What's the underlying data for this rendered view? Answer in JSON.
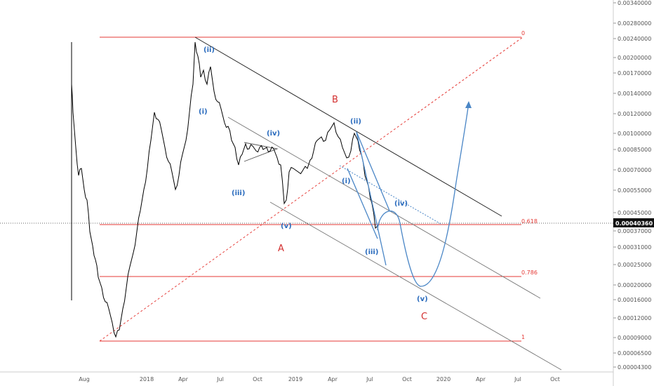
{
  "chart_data": {
    "type": "candlestick-line",
    "title": "",
    "xlabel": "",
    "ylabel": "",
    "x_ticks": [
      "Aug",
      "2018",
      "Apr",
      "Jul",
      "Oct",
      "2019",
      "Apr",
      "Jul",
      "Oct",
      "2020",
      "Apr",
      "Jul",
      "Oct"
    ],
    "y_ticks": [
      "0.00340000",
      "0.00280000",
      "0.00240000",
      "0.00200000",
      "0.00170000",
      "0.00140000",
      "0.00120000",
      "0.00100000",
      "0.00085000",
      "0.00070000",
      "0.00055000",
      "0.00045000",
      "0.00037000",
      "0.00031000",
      "0.00025000",
      "0.00020000",
      "0.00016000",
      "0.00012000",
      "0.00009000",
      "0.00006500",
      "0.00004300"
    ],
    "last_price": "0.00040360",
    "fib_levels": [
      {
        "label": "0"
      },
      {
        "label": "0.618"
      },
      {
        "label": "0.786"
      },
      {
        "label": "1"
      }
    ],
    "wave_labels": {
      "blue": [
        "(ii)",
        "(i)",
        "(iv)",
        "(iii)",
        "(v)",
        "(ii)",
        "(i)",
        "(iv)",
        "(iii)",
        "(v)"
      ],
      "red": [
        "B",
        "A",
        "C"
      ]
    },
    "colors": {
      "price": "#000000",
      "fib": "#e53935",
      "wave_label": "#2a6bbd",
      "wave_path": "#4a86c6",
      "channel_dark": "#222222",
      "channel_light": "#777777",
      "price_tag_bg": "#111111"
    },
    "grid": false,
    "log_scale": true
  }
}
